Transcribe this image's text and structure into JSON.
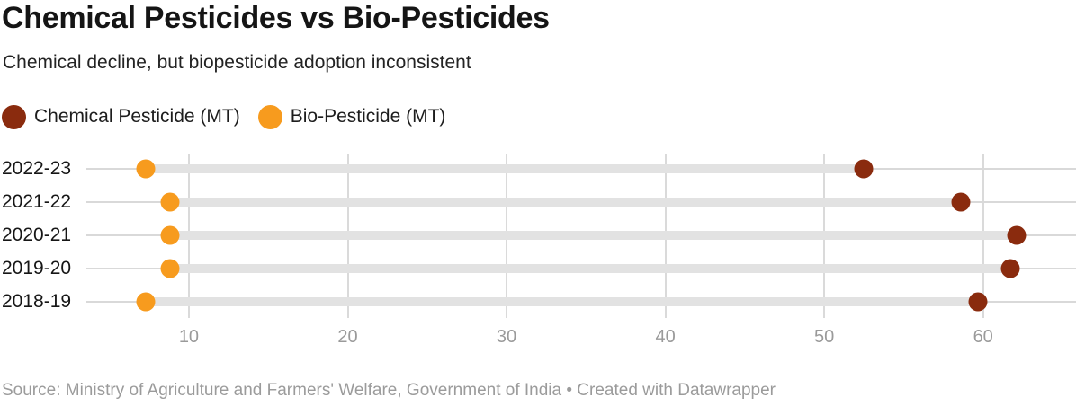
{
  "header": {
    "title": "Chemical Pesticides vs Bio-Pesticides",
    "subtitle": "Chemical decline, but biopesticide adoption inconsistent"
  },
  "chart_data": {
    "type": "scatter",
    "variant": "dot-range-plot",
    "categories": [
      "2022-23",
      "2021-22",
      "2020-21",
      "2019-20",
      "2018-19"
    ],
    "series": [
      {
        "name": "Chemical Pesticide (MT)",
        "color": "#8a2b0e",
        "values": [
          52.5,
          58.6,
          62.1,
          61.7,
          59.7
        ]
      },
      {
        "name": "Bio-Pesticide (MT)",
        "color": "#f79b1e",
        "values": [
          7.3,
          8.8,
          8.8,
          8.8,
          7.3
        ]
      }
    ],
    "x_ticks": [
      10,
      20,
      30,
      40,
      50,
      60
    ],
    "xlim": [
      0,
      65.8
    ],
    "grid": "vertical",
    "legend_position": "top",
    "range_bar": "between series values per category"
  },
  "footer": {
    "source": "Source: Ministry of Agriculture and Farmers' Welfare, Government of India • Created with Datawrapper"
  }
}
